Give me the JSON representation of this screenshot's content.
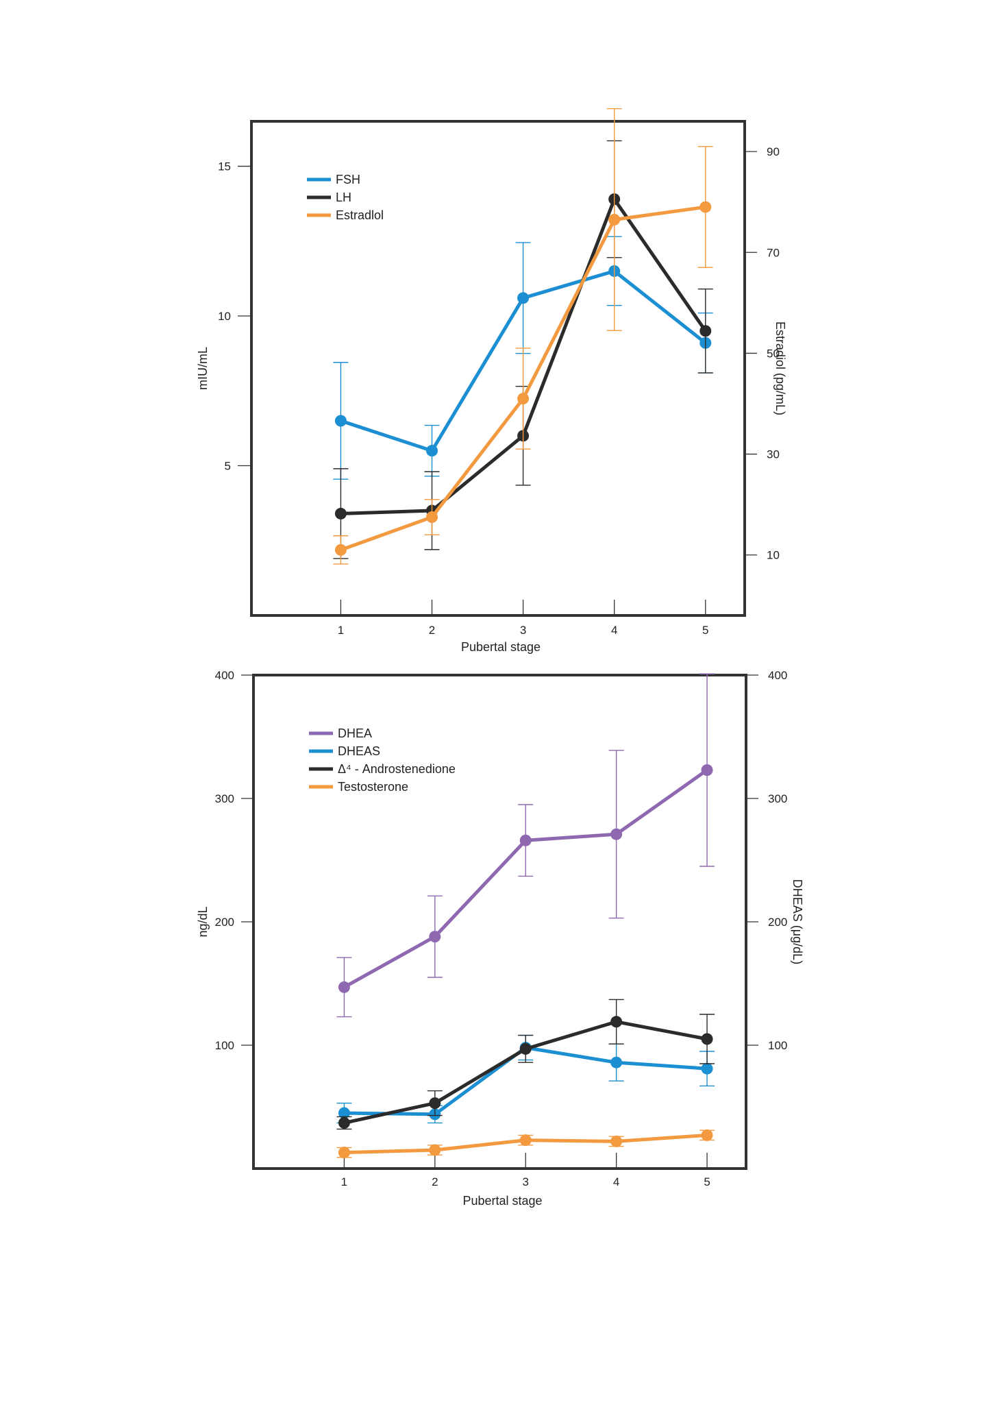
{
  "chart_data": [
    {
      "type": "line",
      "xlabel": "Pubertal stage",
      "ylabel": "mIU/mL",
      "y2label": "Estradiol (pg/mL)",
      "categories": [
        "1",
        "2",
        "3",
        "4",
        "5"
      ],
      "xlim": [
        0.02,
        5.43
      ],
      "ylim": [
        0,
        16.5
      ],
      "y2lim": [
        -2,
        96
      ],
      "yticks": [
        "5",
        "10",
        "15"
      ],
      "y2ticks": [
        "10",
        "30",
        "50",
        "70",
        "90"
      ],
      "legend_position": "top-left",
      "grid": false,
      "series": [
        {
          "name": "FSH",
          "axis": "left",
          "color": "#1b8fd2",
          "values": [
            6.5,
            5.5,
            10.6,
            11.5,
            9.1
          ],
          "err": [
            1.95,
            0.85,
            1.85,
            1.15,
            1.0
          ]
        },
        {
          "name": "LH",
          "axis": "left",
          "color": "#2b2b2b",
          "values": [
            3.4,
            3.5,
            6.0,
            13.9,
            9.5
          ],
          "err": [
            1.5,
            1.3,
            1.65,
            1.95,
            1.4
          ]
        },
        {
          "name": "Estradlol",
          "axis": "right",
          "color": "#f39a41",
          "values": [
            11,
            17.5,
            41,
            76.5,
            79
          ],
          "err": [
            2.8,
            3.5,
            10,
            22,
            12
          ]
        }
      ]
    },
    {
      "type": "line",
      "xlabel": "Pubertal stage",
      "ylabel": "ng/dL",
      "y2label": "DHEAS (μg/dL)",
      "categories": [
        "1",
        "2",
        "3",
        "4",
        "5"
      ],
      "xlim": [
        0.0,
        5.43
      ],
      "ylim": [
        0,
        400
      ],
      "y2lim": [
        0,
        400
      ],
      "yticks": [
        "100",
        "200",
        "300",
        "400"
      ],
      "y2ticks": [
        "100",
        "200",
        "300",
        "400"
      ],
      "legend_position": "top-left",
      "grid": false,
      "series": [
        {
          "name": "DHEA",
          "axis": "left",
          "color": "#8e68b0",
          "values": [
            147,
            188,
            266,
            271,
            323
          ],
          "err": [
            24,
            33,
            29,
            68,
            78
          ]
        },
        {
          "name": "DHEAS",
          "axis": "right",
          "color": "#1b8fd2",
          "values": [
            45,
            44,
            98,
            86,
            81
          ],
          "err": [
            8,
            7,
            10,
            15,
            14
          ]
        },
        {
          "name": "Δ⁴ - Androstenedione",
          "axis": "left",
          "color": "#2b2b2b",
          "values": [
            37,
            53,
            97,
            119,
            105
          ],
          "err": [
            5,
            10,
            11,
            18,
            20
          ]
        },
        {
          "name": "Testosterone",
          "axis": "left",
          "color": "#f39a41",
          "values": [
            13,
            15,
            23,
            22,
            27
          ],
          "err": [
            4,
            4,
            4,
            4,
            4
          ]
        }
      ]
    }
  ]
}
